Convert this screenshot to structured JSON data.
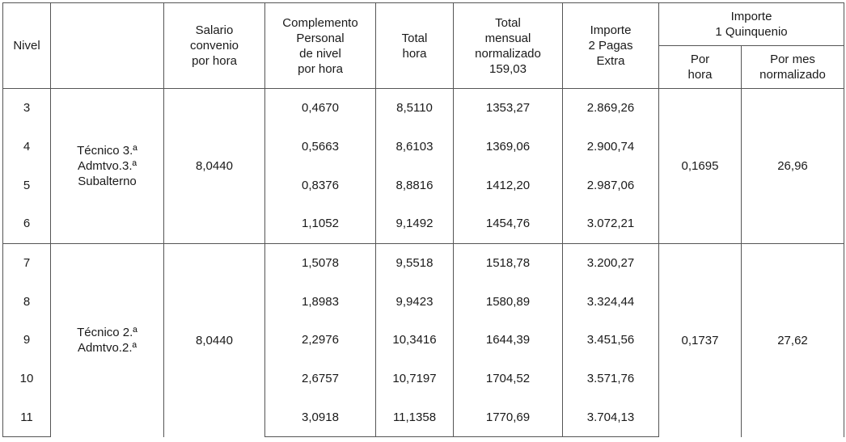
{
  "headers": {
    "nivel": "Nivel",
    "categoria": "",
    "salario": "Salario\nconvenio\npor hora",
    "complemento": "Complemento\nPersonal\nde nivel\npor hora",
    "total_hora": "Total\nhora",
    "total_mensual": "Total\nmensual\nnormalizado\n159,03",
    "importe_pagas": "Importe\n2 Pagas\nExtra",
    "quinquenio": "Importe\n1 Quinquenio",
    "por_hora": "Por\nhora",
    "por_mes": "Por mes\nnormalizado"
  },
  "groups": [
    {
      "categoria": "Técnico 3.ª\nAdmtvo.3.ª\nSubalterno",
      "salario": "8,0440",
      "quinq_hora": "0,1695",
      "quinq_mes": "26,96",
      "rows": [
        {
          "nivel": "3",
          "complemento": "0,4670",
          "total_hora": "8,5110",
          "total_mensual": "1353,27",
          "importe": "2.869,26"
        },
        {
          "nivel": "4",
          "complemento": "0,5663",
          "total_hora": "8,6103",
          "total_mensual": "1369,06",
          "importe": "2.900,74"
        },
        {
          "nivel": "5",
          "complemento": "0,8376",
          "total_hora": "8,8816",
          "total_mensual": "1412,20",
          "importe": "2.987,06"
        },
        {
          "nivel": "6",
          "complemento": "1,1052",
          "total_hora": "9,1492",
          "total_mensual": "1454,76",
          "importe": "3.072,21"
        }
      ]
    },
    {
      "categoria": "Técnico 2.ª\nAdmtvo.2.ª",
      "salario": "8,0440",
      "quinq_hora": "0,1737",
      "quinq_mes": "27,62",
      "rows": [
        {
          "nivel": "7",
          "complemento": "1,5078",
          "total_hora": "9,5518",
          "total_mensual": "1518,78",
          "importe": "3.200,27"
        },
        {
          "nivel": "8",
          "complemento": "1,8983",
          "total_hora": "9,9423",
          "total_mensual": "1580,89",
          "importe": "3.324,44"
        },
        {
          "nivel": "9",
          "complemento": "2,2976",
          "total_hora": "10,3416",
          "total_mensual": "1644,39",
          "importe": "3.451,56"
        },
        {
          "nivel": "10",
          "complemento": "2,6757",
          "total_hora": "10,7197",
          "total_mensual": "1704,52",
          "importe": "3.571,76"
        },
        {
          "nivel": "11",
          "complemento": "3,0918",
          "total_hora": "11,1358",
          "total_mensual": "1770,69",
          "importe": "3.704,13"
        }
      ]
    }
  ]
}
